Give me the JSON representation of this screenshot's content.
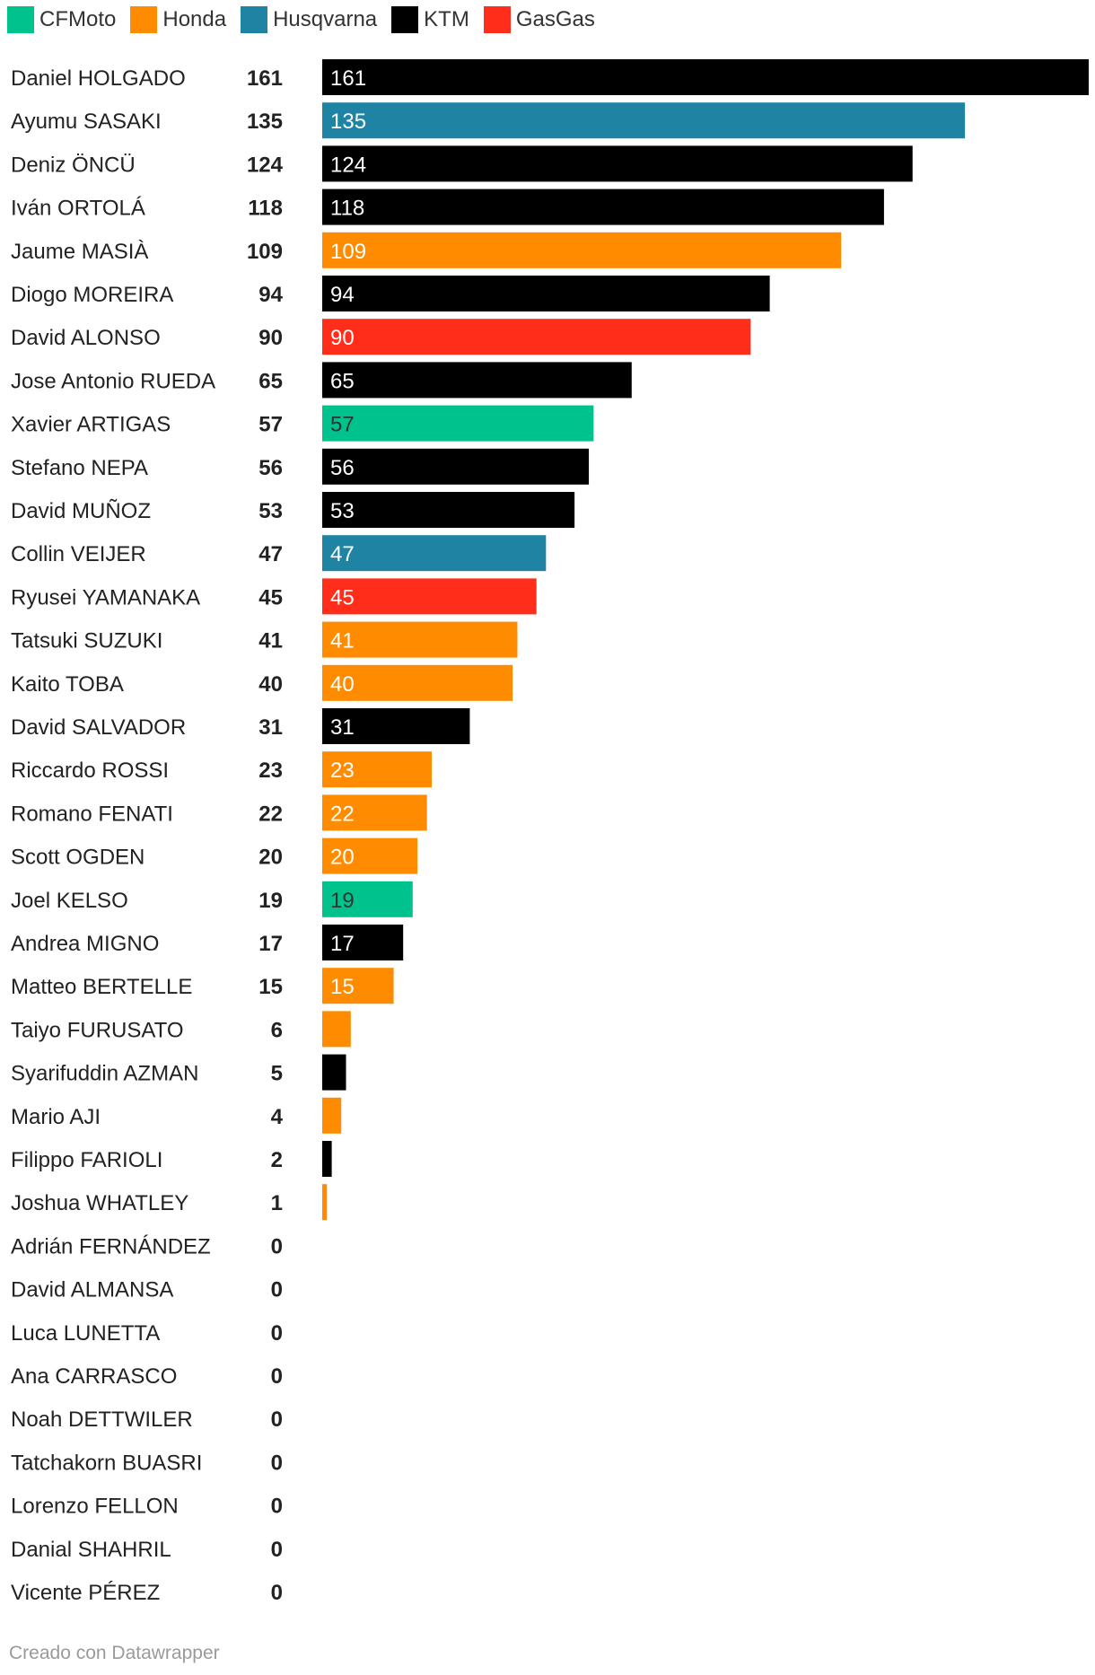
{
  "legend": [
    {
      "label": "CFMoto",
      "color": "#00c28c"
    },
    {
      "label": "Honda",
      "color": "#ff8c00"
    },
    {
      "label": "Husqvarna",
      "color": "#1f84a3"
    },
    {
      "label": "KTM",
      "color": "#000000"
    },
    {
      "label": "GasGas",
      "color": "#ff2d19"
    }
  ],
  "chart_data": {
    "type": "bar",
    "orientation": "horizontal",
    "xlim": [
      0,
      161
    ],
    "grid": false,
    "legend_position": "top-left",
    "rows": [
      {
        "name": "Daniel HOLGADO",
        "value": 161,
        "brand": "KTM"
      },
      {
        "name": "Ayumu SASAKI",
        "value": 135,
        "brand": "Husqvarna"
      },
      {
        "name": "Deniz ÖNCÜ",
        "value": 124,
        "brand": "KTM"
      },
      {
        "name": "Iván ORTOLÁ",
        "value": 118,
        "brand": "KTM"
      },
      {
        "name": "Jaume MASIÀ",
        "value": 109,
        "brand": "Honda"
      },
      {
        "name": "Diogo MOREIRA",
        "value": 94,
        "brand": "KTM"
      },
      {
        "name": "David ALONSO",
        "value": 90,
        "brand": "GasGas"
      },
      {
        "name": "Jose Antonio RUEDA",
        "value": 65,
        "brand": "KTM"
      },
      {
        "name": "Xavier ARTIGAS",
        "value": 57,
        "brand": "CFMoto"
      },
      {
        "name": "Stefano NEPA",
        "value": 56,
        "brand": "KTM"
      },
      {
        "name": "David MUÑOZ",
        "value": 53,
        "brand": "KTM"
      },
      {
        "name": "Collin VEIJER",
        "value": 47,
        "brand": "Husqvarna"
      },
      {
        "name": "Ryusei YAMANAKA",
        "value": 45,
        "brand": "GasGas"
      },
      {
        "name": "Tatsuki SUZUKI",
        "value": 41,
        "brand": "Honda"
      },
      {
        "name": "Kaito TOBA",
        "value": 40,
        "brand": "Honda"
      },
      {
        "name": "David SALVADOR",
        "value": 31,
        "brand": "KTM"
      },
      {
        "name": "Riccardo ROSSI",
        "value": 23,
        "brand": "Honda"
      },
      {
        "name": "Romano FENATI",
        "value": 22,
        "brand": "Honda"
      },
      {
        "name": "Scott OGDEN",
        "value": 20,
        "brand": "Honda"
      },
      {
        "name": "Joel KELSO",
        "value": 19,
        "brand": "CFMoto"
      },
      {
        "name": "Andrea MIGNO",
        "value": 17,
        "brand": "KTM"
      },
      {
        "name": "Matteo BERTELLE",
        "value": 15,
        "brand": "Honda"
      },
      {
        "name": "Taiyo FURUSATO",
        "value": 6,
        "brand": "Honda"
      },
      {
        "name": "Syarifuddin AZMAN",
        "value": 5,
        "brand": "KTM"
      },
      {
        "name": "Mario AJI",
        "value": 4,
        "brand": "Honda"
      },
      {
        "name": "Filippo FARIOLI",
        "value": 2,
        "brand": "KTM"
      },
      {
        "name": "Joshua WHATLEY",
        "value": 1,
        "brand": "Honda"
      },
      {
        "name": "Adrián FERNÁNDEZ",
        "value": 0,
        "brand": ""
      },
      {
        "name": "David ALMANSA",
        "value": 0,
        "brand": ""
      },
      {
        "name": "Luca LUNETTA",
        "value": 0,
        "brand": ""
      },
      {
        "name": "Ana CARRASCO",
        "value": 0,
        "brand": ""
      },
      {
        "name": "Noah DETTWILER",
        "value": 0,
        "brand": ""
      },
      {
        "name": "Tatchakorn BUASRI",
        "value": 0,
        "brand": ""
      },
      {
        "name": "Lorenzo FELLON",
        "value": 0,
        "brand": ""
      },
      {
        "name": "Danial SHAHRIL",
        "value": 0,
        "brand": ""
      },
      {
        "name": "Vicente PÉREZ",
        "value": 0,
        "brand": ""
      }
    ]
  },
  "footer": {
    "credit": "Creado con Datawrapper"
  }
}
